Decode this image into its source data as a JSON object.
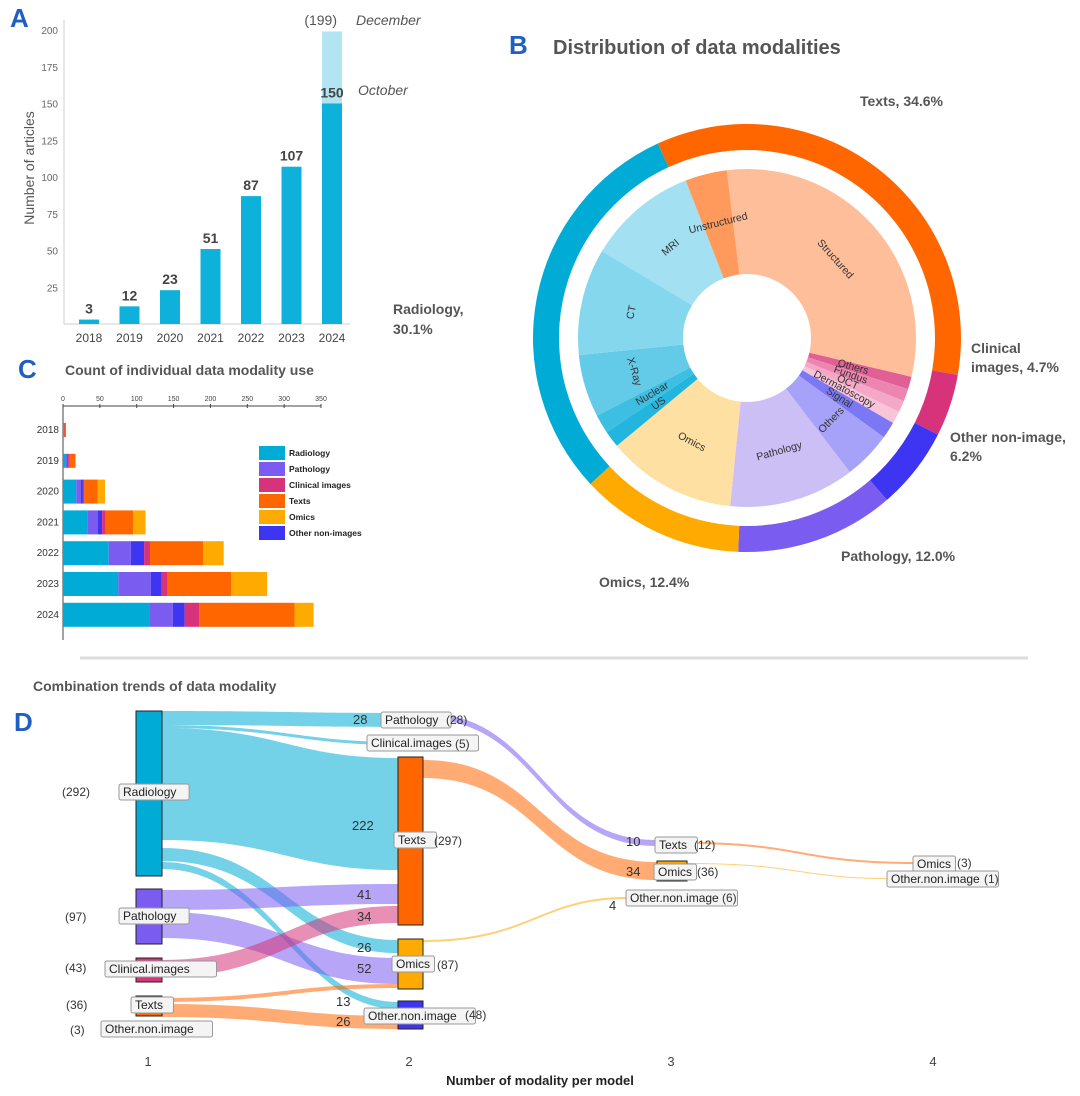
{
  "panels": {
    "a": {
      "letter": "A",
      "chart_data": {
        "type": "bar",
        "ylabel": "Number of articles",
        "ylim": [
          0,
          200
        ],
        "yticks": [
          25,
          50,
          75,
          100,
          125,
          150,
          175,
          200
        ],
        "categories": [
          "2018",
          "2019",
          "2020",
          "2021",
          "2022",
          "2023",
          "2024"
        ],
        "values": [
          3,
          12,
          23,
          51,
          87,
          107,
          150
        ],
        "value_labels": [
          "3",
          "12",
          "23",
          "51",
          "87",
          "107",
          "150"
        ],
        "projection": {
          "value": 199,
          "label": "(199)",
          "note": "December"
        },
        "current_note": "October",
        "bar_color": "#0db1d9",
        "projection_color": "#b3e4f2"
      }
    },
    "b": {
      "letter": "B",
      "title": "Distribution of data modalities",
      "chart_data": {
        "type": "pie",
        "outer": [
          {
            "name": "Texts",
            "label": "Texts, 34.6%",
            "value": 34.6,
            "color": "#ff6600"
          },
          {
            "name": "Clinical images",
            "label": "Clinical images, 4.7%",
            "value": 4.7,
            "color": "#d6337a"
          },
          {
            "name": "Other non-image",
            "label": "Other non-image, 6.2%",
            "value": 6.2,
            "color": "#3d35f2"
          },
          {
            "name": "Pathology",
            "label": "Pathology, 12.0%",
            "value": 12.0,
            "color": "#7b5cf0"
          },
          {
            "name": "Omics",
            "label": "Omics, 12.4%",
            "value": 12.4,
            "color": "#ffaa00"
          },
          {
            "name": "Radiology",
            "label": "Radiology, 30.1%",
            "value": 30.1,
            "color": "#00acd6"
          }
        ],
        "inner": [
          {
            "name": "Structured",
            "value": 30.6,
            "color": "#ffbe9a"
          },
          {
            "name": "Others",
            "value": 1.2,
            "color": "#e05f94"
          },
          {
            "name": "Fundus",
            "value": 1.2,
            "color": "#ec86b0"
          },
          {
            "name": "OCT",
            "value": 1.1,
            "color": "#f4a7c6"
          },
          {
            "name": "Dermatoscopy",
            "value": 1.2,
            "color": "#f8c4d8"
          },
          {
            "name": "Signal",
            "value": 1.6,
            "color": "#7c78f5"
          },
          {
            "name": "Others",
            "value": 4.6,
            "color": "#a6a2f9"
          },
          {
            "name": "Pathology",
            "value": 12.0,
            "color": "#cbbff5"
          },
          {
            "name": "Omics",
            "value": 12.4,
            "color": "#ffe0a3"
          },
          {
            "name": "US",
            "value": 1.6,
            "color": "#22b5dd"
          },
          {
            "name": "Nuclear",
            "value": 1.8,
            "color": "#3dbfe2"
          },
          {
            "name": "X-Ray",
            "value": 6.0,
            "color": "#63cbe8"
          },
          {
            "name": "CT",
            "value": 10.2,
            "color": "#85d7ee"
          },
          {
            "name": "MRI",
            "value": 10.5,
            "color": "#a2e0f2"
          },
          {
            "name": "Unstructured",
            "value": 4.0,
            "color": "#ff9a5c"
          }
        ]
      }
    },
    "c": {
      "letter": "C",
      "title": "Count of individual data modality use",
      "chart_data": {
        "type": "bar",
        "orientation": "horizontal",
        "stacked": true,
        "xlim": [
          0,
          350
        ],
        "xticks": [
          0,
          50,
          100,
          150,
          200,
          250,
          300,
          350
        ],
        "categories": [
          "2018",
          "2019",
          "2020",
          "2021",
          "2022",
          "2023",
          "2024"
        ],
        "series": [
          {
            "name": "Radiology",
            "color": "#00acd6",
            "values": [
              1,
              4,
              18,
              33,
              62,
              75,
              118
            ]
          },
          {
            "name": "Pathology",
            "color": "#7b5cf0",
            "values": [
              0,
              2,
              6,
              14,
              30,
              44,
              31
            ]
          },
          {
            "name": "Clinical images",
            "color": "#d6337a",
            "values": [
              1,
              2,
              2,
              5,
              8,
              8,
              20
            ]
          },
          {
            "name": "Texts",
            "color": "#ff6600",
            "values": [
              2,
              8,
              18,
              37,
              72,
              86,
              129
            ]
          },
          {
            "name": "Omics",
            "color": "#ffaa00",
            "values": [
              0,
              0,
              10,
              17,
              28,
              49,
              26
            ]
          },
          {
            "name": "Other non-images",
            "color": "#3d35f2",
            "values": [
              0,
              1,
              3,
              6,
              18,
              15,
              16
            ]
          }
        ]
      }
    },
    "d": {
      "letter": "D",
      "title": "Combination trends of data modality",
      "chart_data": {
        "type": "sankey",
        "xlabel": "Number of modality per model",
        "columns": [
          "1",
          "2",
          "3",
          "4"
        ],
        "nodes": [
          {
            "label": "Radiology",
            "count": "(292)",
            "column": 1
          },
          {
            "label": "Pathology",
            "count": "(97)",
            "column": 1
          },
          {
            "label": "Clinical.images",
            "count": "(43)",
            "column": 1
          },
          {
            "label": "Texts",
            "count": "(36)",
            "column": 1
          },
          {
            "label": "Other.non.image",
            "count": "(3)",
            "column": 1
          },
          {
            "label": "Pathology",
            "count": "(28)",
            "column": 2
          },
          {
            "label": "Clinical.images",
            "count": "(5)",
            "column": 2
          },
          {
            "label": "Texts",
            "count": "(297)",
            "column": 2
          },
          {
            "label": "Omics",
            "count": "(87)",
            "column": 2
          },
          {
            "label": "Other.non.image",
            "count": "(48)",
            "column": 2
          },
          {
            "label": "Texts",
            "count": "(12)",
            "column": 3
          },
          {
            "label": "Omics",
            "count": "(36)",
            "column": 3
          },
          {
            "label": "Other.non.image",
            "count": "(6)",
            "column": 3
          },
          {
            "label": "Omics",
            "count": "(3)",
            "column": 4
          },
          {
            "label": "Other.non.image",
            "count": "(1)",
            "column": 4
          }
        ],
        "flow_labels": [
          "28",
          "222",
          "41",
          "34",
          "26",
          "52",
          "13",
          "26",
          "10",
          "34",
          "4"
        ]
      }
    }
  }
}
